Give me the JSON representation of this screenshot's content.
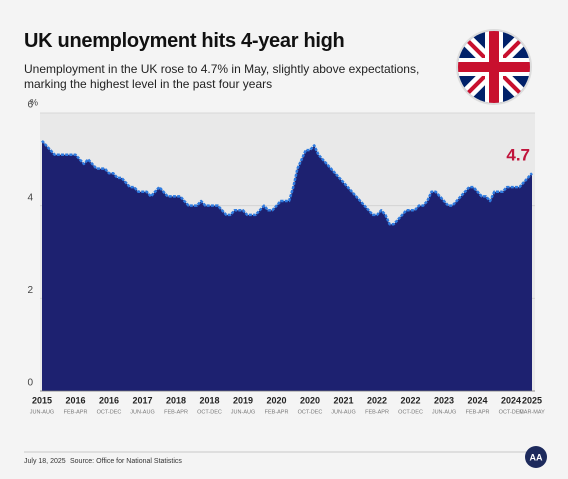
{
  "chart_data": {
    "type": "area",
    "title": "UK unemployment hits 4-year high",
    "subtitle": "Unemployment in the UK rose to 4.7% in May, slightly above expectations, marking the highest level in the past four years",
    "ylabel": "%",
    "color": "#1d2170",
    "line_color": "#2f7be0",
    "label_color": "#c0143c",
    "ylim": [
      0,
      6
    ],
    "yticks": [
      0,
      2,
      4,
      6
    ],
    "grid": true,
    "categories": [
      {
        "year": "2015",
        "period": "JUN-AUG"
      },
      null,
      null,
      null,
      null,
      null,
      null,
      null,
      {
        "year": "2016",
        "period": "FEB-APR"
      },
      null,
      null,
      null,
      null,
      null,
      null,
      null,
      {
        "year": "2016",
        "period": "OCT-DEC"
      },
      null,
      null,
      null,
      null,
      null,
      null,
      null,
      {
        "year": "2017",
        "period": "JUN-AUG"
      },
      null,
      null,
      null,
      null,
      null,
      null,
      null,
      {
        "year": "2018",
        "period": "FEB-APR"
      },
      null,
      null,
      null,
      null,
      null,
      null,
      null,
      {
        "year": "2018",
        "period": "OCT-DEC"
      },
      null,
      null,
      null,
      null,
      null,
      null,
      null,
      {
        "year": "2019",
        "period": "JUN-AUG"
      },
      null,
      null,
      null,
      null,
      null,
      null,
      null,
      {
        "year": "2020",
        "period": "FEB-APR"
      },
      null,
      null,
      null,
      null,
      null,
      null,
      null,
      {
        "year": "2020",
        "period": "OCT-DEC"
      },
      null,
      null,
      null,
      null,
      null,
      null,
      null,
      {
        "year": "2021",
        "period": "JUN-AUG"
      },
      null,
      null,
      null,
      null,
      null,
      null,
      null,
      {
        "year": "2022",
        "period": "FEB-APR"
      },
      null,
      null,
      null,
      null,
      null,
      null,
      null,
      {
        "year": "2022",
        "period": "OCT-DEC"
      },
      null,
      null,
      null,
      null,
      null,
      null,
      null,
      {
        "year": "2023",
        "period": "JUN-AUG"
      },
      null,
      null,
      null,
      null,
      null,
      null,
      null,
      {
        "year": "2024",
        "period": "FEB-APR"
      },
      null,
      null,
      null,
      null,
      null,
      null,
      null,
      {
        "year": "2024",
        "period": "OCT-DEC"
      },
      null,
      null,
      null,
      null,
      {
        "year": "2025",
        "period": "MAR-MAY"
      }
    ],
    "values": [
      5.4,
      5.3,
      5.2,
      5.1,
      5.1,
      5.1,
      5.1,
      5.1,
      5.1,
      5.0,
      4.9,
      5.0,
      4.9,
      4.8,
      4.8,
      4.8,
      4.7,
      4.7,
      4.6,
      4.6,
      4.5,
      4.4,
      4.4,
      4.3,
      4.3,
      4.3,
      4.2,
      4.3,
      4.4,
      4.3,
      4.2,
      4.2,
      4.2,
      4.2,
      4.1,
      4.0,
      4.0,
      4.0,
      4.1,
      4.0,
      4.0,
      4.0,
      4.0,
      3.9,
      3.8,
      3.8,
      3.9,
      3.9,
      3.9,
      3.8,
      3.8,
      3.8,
      3.9,
      4.0,
      3.9,
      3.9,
      4.0,
      4.1,
      4.1,
      4.1,
      4.4,
      4.8,
      5.0,
      5.2,
      5.2,
      5.3,
      5.1,
      5.0,
      4.9,
      4.8,
      4.7,
      4.6,
      4.5,
      4.4,
      4.3,
      4.2,
      4.1,
      4.0,
      3.9,
      3.8,
      3.8,
      3.9,
      3.8,
      3.6,
      3.6,
      3.7,
      3.8,
      3.9,
      3.9,
      3.9,
      4.0,
      4.0,
      4.1,
      4.3,
      4.3,
      4.2,
      4.1,
      4.0,
      4.0,
      4.1,
      4.2,
      4.3,
      4.4,
      4.4,
      4.3,
      4.2,
      4.2,
      4.1,
      4.3,
      4.3,
      4.3,
      4.4,
      4.4,
      4.4,
      4.4,
      4.5,
      4.6,
      4.7
    ]
  },
  "footer": {
    "date": "July 18, 2025",
    "source": "Source: Office for National Statistics"
  }
}
